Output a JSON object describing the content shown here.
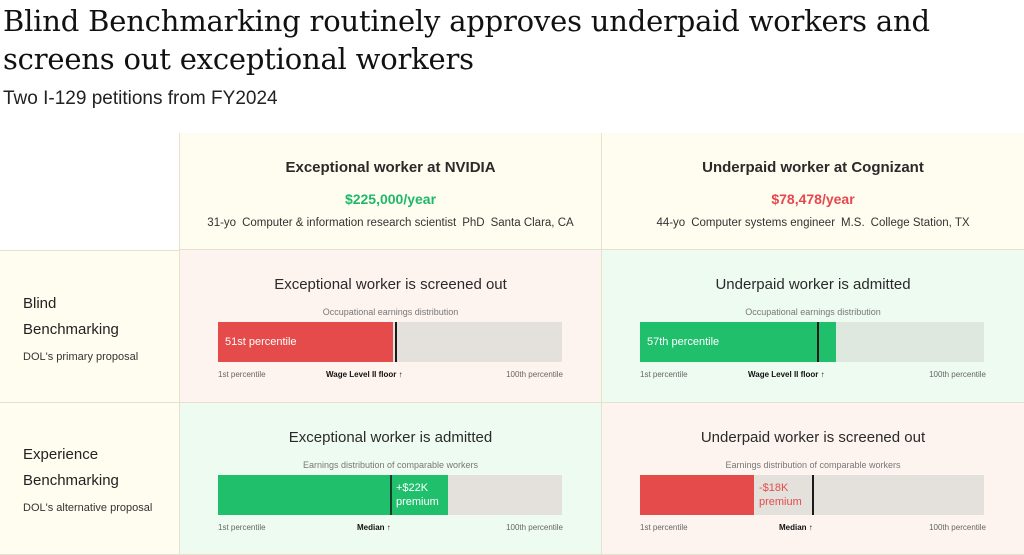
{
  "title": "Blind Benchmarking routinely approves underpaid workers and screens out exceptional workers",
  "subtitle": "Two I-129 petitions from FY2024",
  "columns": [
    {
      "title": "Exceptional worker at NVIDIA",
      "salary": "$225,000/year",
      "age": "31-yo",
      "occupation": "Computer & information research scientist",
      "degree": "PhD",
      "location": "Santa Clara, CA"
    },
    {
      "title": "Underpaid worker at Cognizant",
      "salary": "$78,478/year",
      "age": "44-yo",
      "occupation": "Computer systems engineer",
      "degree": "M.S.",
      "location": "College Station, TX"
    }
  ],
  "rows": [
    {
      "name_line1": "Blind",
      "name_line2": "Benchmarking",
      "sub": "DOL's primary proposal",
      "dist_label": "Occupational earnings distribution",
      "marker_label": "Wage Level II floor ↑",
      "axis_left": "1st percentile",
      "axis_right": "100th percentile",
      "cells": [
        {
          "title": "Exceptional worker is screened out",
          "fill_label": "51st percentile",
          "fill_fraction": 0.51,
          "marker_fraction": 0.52,
          "status": "bad"
        },
        {
          "title": "Underpaid worker is admitted",
          "fill_label": "57th percentile",
          "fill_fraction": 0.57,
          "marker_fraction": 0.52,
          "status": "good"
        }
      ]
    },
    {
      "name_line1": "Experience",
      "name_line2": "Benchmarking",
      "sub": "DOL's alternative proposal",
      "dist_label": "Earnings distribution of comparable workers",
      "marker_label": "Median ↑",
      "axis_left": "1st percentile",
      "axis_right": "100th percentile",
      "cells": [
        {
          "title": "Exceptional worker is admitted",
          "fill_label_1": "+$22K",
          "fill_label_2": "premium",
          "fill_fraction": 0.67,
          "marker_fraction": 0.5,
          "status": "good"
        },
        {
          "title": "Underpaid worker is screened out",
          "fill_label_1": "-$18K",
          "fill_label_2": "premium",
          "fill_fraction": 0.33,
          "marker_fraction": 0.5,
          "status": "bad"
        }
      ]
    }
  ],
  "colors": {
    "good": "#1fbf6c",
    "bad": "#e54b4b",
    "header_bg": "#fffdf0"
  }
}
